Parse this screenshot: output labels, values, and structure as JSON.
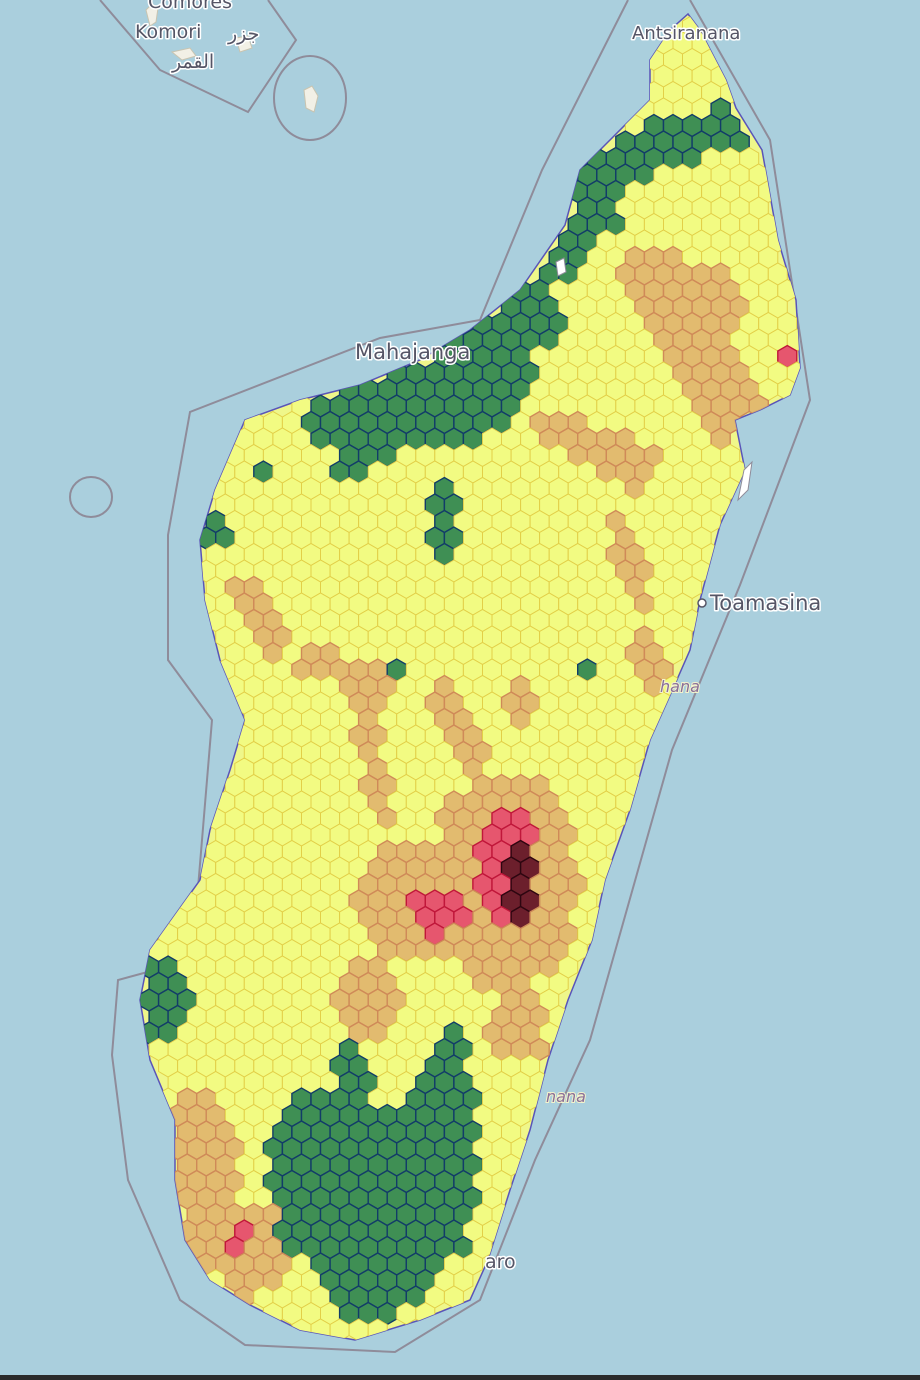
{
  "map": {
    "colors": {
      "water": "#aacfdd",
      "maritime_boundary": "#8f8c9a",
      "land_base": "#eff78a",
      "hex_fill_yellow": "#f2fb82",
      "hex_stroke_yellow": "#e2cf48",
      "hex_fill_orange": "#dfb06a",
      "hex_stroke_orange": "#cf8a58",
      "hex_fill_red": "#e6566e",
      "hex_stroke_red": "#c0173a",
      "hex_fill_darkred": "#6c1f2c",
      "hex_stroke_darkred": "#2d0610",
      "hex_fill_green": "#3f8f54",
      "hex_stroke_green": "#123c68",
      "label_text": "#555566"
    },
    "legend_levels": [
      "green",
      "yellow",
      "orange",
      "red",
      "darkred"
    ],
    "place_labels": {
      "comores": "Comores",
      "komori": "Komori",
      "arabic_1": "جزر",
      "arabic_2": "القمر",
      "antsiranana": "Antsiranana",
      "mahajanga": "Mahajanga",
      "toamasina": "Toamasina",
      "toliara_fragment": "aro",
      "fianarantsoa_fragment": "nana",
      "ambatondrazaka_fragment": "hana"
    }
  }
}
